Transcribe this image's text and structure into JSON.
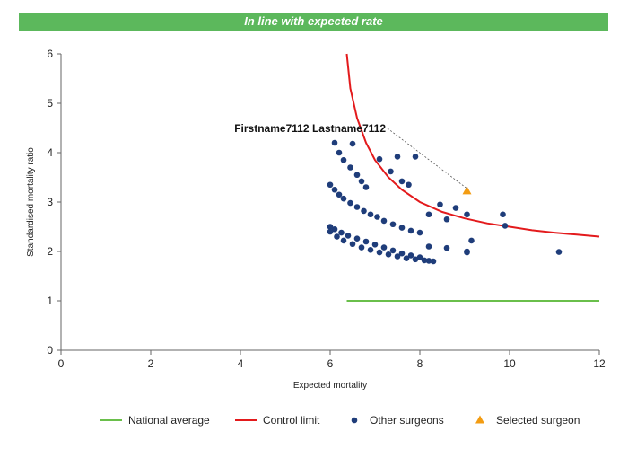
{
  "banner": {
    "text": "In line with expected rate",
    "color": "#5cb85c"
  },
  "chart_data": {
    "type": "scatter",
    "xlabel": "Expected mortality",
    "ylabel": "Standardised mortality ratio",
    "xlim": [
      0,
      12
    ],
    "ylim": [
      0,
      6
    ],
    "xticks": [
      0,
      2,
      4,
      6,
      8,
      10,
      12
    ],
    "yticks": [
      0,
      1,
      2,
      3,
      4,
      5,
      6
    ],
    "grid": false,
    "legend_position": "bottom",
    "annotation": {
      "text": "Firstname7112 Lastname7112",
      "x": 9.05,
      "y": 3.22
    },
    "series": [
      {
        "name": "National average",
        "kind": "line",
        "color": "#6abf4b",
        "x": [
          6.37,
          12
        ],
        "y": [
          1.0,
          1.0
        ]
      },
      {
        "name": "Control limit",
        "kind": "line",
        "color": "#e31a1c",
        "x": [
          6.37,
          6.45,
          6.6,
          6.8,
          7.0,
          7.3,
          7.6,
          8.0,
          8.5,
          9.0,
          9.5,
          10.0,
          10.5,
          11.0,
          11.5,
          12.0
        ],
        "y": [
          6.0,
          5.3,
          4.7,
          4.2,
          3.85,
          3.5,
          3.25,
          3.0,
          2.8,
          2.67,
          2.57,
          2.5,
          2.43,
          2.38,
          2.34,
          2.3
        ]
      },
      {
        "name": "Other surgeons",
        "kind": "scatter",
        "color": "#1f3d7a",
        "x": [
          6.1,
          6.2,
          6.3,
          6.5,
          6.45,
          6.6,
          6.7,
          6.8,
          7.1,
          7.35,
          7.5,
          7.9,
          7.6,
          7.75,
          6.0,
          6.1,
          6.2,
          6.3,
          6.45,
          6.6,
          6.75,
          6.9,
          7.05,
          7.2,
          7.4,
          7.6,
          7.8,
          8.0,
          8.2,
          8.45,
          8.6,
          8.8,
          9.05,
          6.0,
          6.1,
          6.25,
          6.4,
          6.6,
          6.8,
          7.0,
          7.2,
          7.4,
          7.6,
          7.8,
          8.0,
          8.2,
          8.6,
          9.05,
          9.15,
          9.85,
          9.9,
          11.1,
          6.0,
          6.15,
          6.3,
          6.5,
          6.7,
          6.9,
          7.1,
          7.3,
          7.5,
          7.7,
          7.9,
          8.1,
          8.2,
          8.3,
          9.05
        ],
        "y": [
          4.2,
          4.0,
          3.85,
          4.18,
          3.7,
          3.55,
          3.42,
          3.3,
          3.87,
          3.62,
          3.92,
          3.92,
          3.42,
          3.35,
          3.35,
          3.25,
          3.15,
          3.07,
          2.98,
          2.9,
          2.82,
          2.75,
          2.7,
          2.62,
          2.55,
          2.48,
          2.42,
          2.38,
          2.75,
          2.95,
          2.65,
          2.88,
          2.75,
          2.5,
          2.45,
          2.38,
          2.32,
          2.26,
          2.2,
          2.14,
          2.08,
          2.02,
          1.96,
          1.92,
          1.88,
          2.1,
          2.07,
          2.0,
          2.22,
          2.75,
          2.52,
          1.99,
          2.4,
          2.3,
          2.22,
          2.15,
          2.08,
          2.03,
          1.98,
          1.94,
          1.9,
          1.86,
          1.84,
          1.82,
          1.81,
          1.8,
          1.98
        ]
      },
      {
        "name": "Selected surgeon",
        "kind": "marker",
        "marker": "triangle",
        "color": "#f39c12",
        "x": [
          9.05
        ],
        "y": [
          3.22
        ]
      }
    ]
  }
}
